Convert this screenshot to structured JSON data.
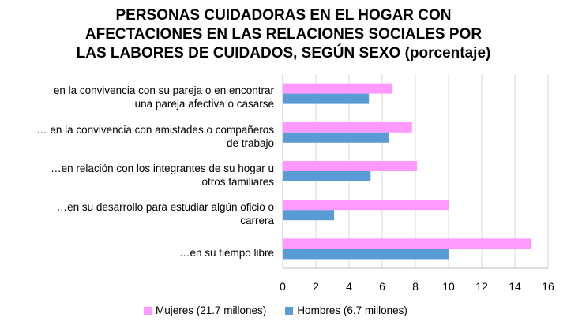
{
  "chart_data": {
    "type": "bar",
    "orientation": "horizontal",
    "title": [
      "PERSONAS CUIDADORAS EN EL HOGAR CON",
      "AFECTACIONES EN LAS RELACIONES SOCIALES POR",
      "LAS LABORES DE CUIDADOS, SEGÚN SEXO (porcentaje)"
    ],
    "categories": [
      [
        "en la convivencia con su pareja o en encontrar",
        "una pareja afectiva o casarse"
      ],
      [
        "… en la convivencia con amistades o compañeros",
        "de trabajo"
      ],
      [
        "…en relación con los integrantes de su hogar u",
        "otros familiares"
      ],
      [
        "…en su desarrollo para estudiar algún oficio o",
        "carrera"
      ],
      [
        "…en su tiempo libre"
      ]
    ],
    "series": [
      {
        "name": "Mujeres (21.7 millones)",
        "color": "#ff99ff",
        "values": [
          6.6,
          7.8,
          8.1,
          10.0,
          15.0
        ]
      },
      {
        "name": "Hombres (6.7 millones)",
        "color": "#5b9bd5",
        "values": [
          5.2,
          6.4,
          5.3,
          3.1,
          10.0
        ]
      }
    ],
    "xlim": [
      0,
      16
    ],
    "xticks": [
      0,
      2,
      4,
      6,
      8,
      10,
      12,
      14,
      16
    ],
    "grid": true,
    "legend": "bottom"
  }
}
